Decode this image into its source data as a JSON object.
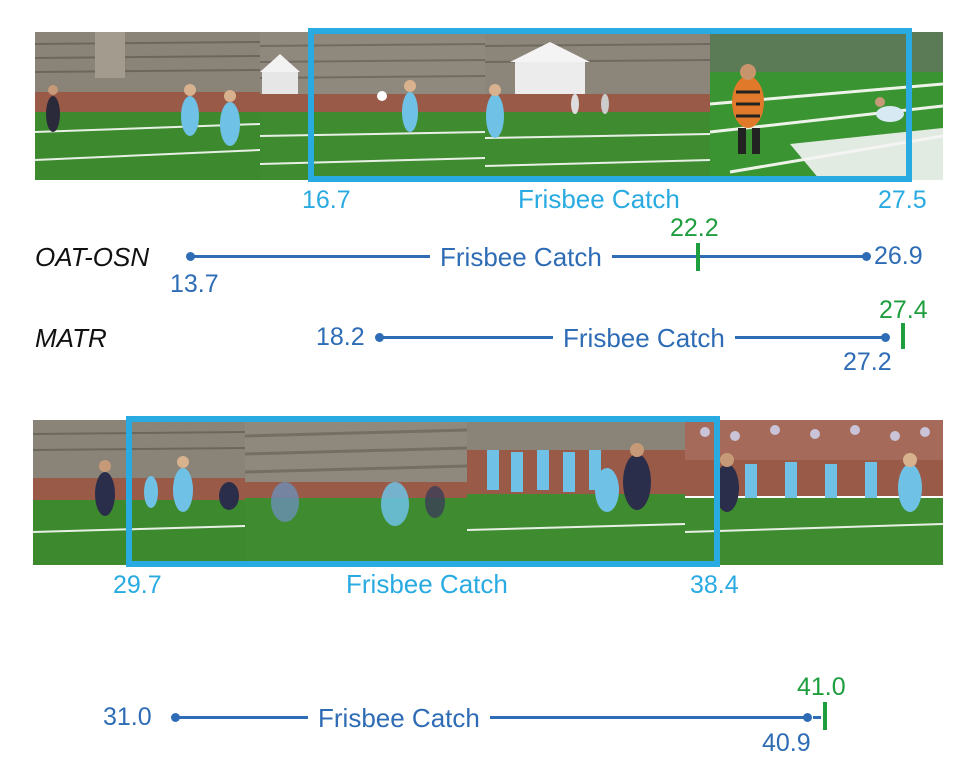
{
  "figure": {
    "top_clip": {
      "gt_start": "16.7",
      "gt_end": "27.5",
      "gt_label": "Frisbee Catch",
      "predictions": [
        {
          "method": "OAT-OSN",
          "start": "13.7",
          "end": "26.9",
          "label": "Frisbee Catch",
          "online_point": "22.2"
        },
        {
          "method": "MATR",
          "start": "18.2",
          "end": "27.2",
          "label": "Frisbee Catch",
          "online_point": "27.4"
        }
      ]
    },
    "bottom_clip": {
      "gt_start": "29.7",
      "gt_end": "38.4",
      "gt_label": "Frisbee Catch",
      "prediction": {
        "start": "31.0",
        "end": "40.9",
        "label": "Frisbee Catch",
        "online_point": "41.0"
      }
    }
  },
  "colors": {
    "gt_box": "#29abe2",
    "prediction_line": "#2e6cb5",
    "online_tick": "#1e9e3e",
    "field_green": "#3d8a2e",
    "stands_gray": "#8a8378",
    "track_brick": "#9a5a48",
    "jersey_blue": "#6fc2e6"
  }
}
